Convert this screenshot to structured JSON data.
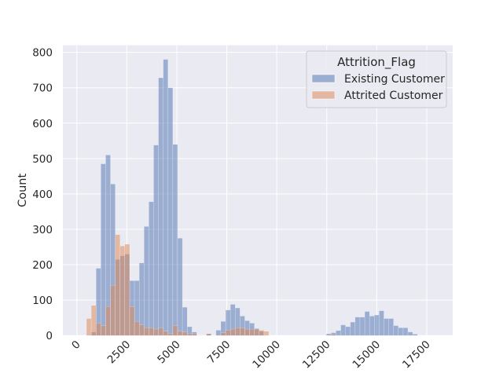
{
  "chart_data": {
    "type": "bar",
    "subtype": "histogram",
    "xlabel": "",
    "ylabel": "Count",
    "xlim": [
      -700,
      18800
    ],
    "ylim": [
      0,
      820
    ],
    "bin_width": 240,
    "x_ticks": [
      0,
      2500,
      5000,
      7500,
      10000,
      12500,
      15000,
      17500
    ],
    "x_tick_labels": [
      "0",
      "2500",
      "5000",
      "7500",
      "10000",
      "12500",
      "15000",
      "17500"
    ],
    "y_ticks": [
      0,
      100,
      200,
      300,
      400,
      500,
      600,
      700,
      800
    ],
    "y_tick_labels": [
      "0",
      "100",
      "200",
      "300",
      "400",
      "500",
      "600",
      "700",
      "800"
    ],
    "grid": true,
    "background": "#eaeaf2",
    "legend": {
      "title": "Attrition_Flag",
      "position": "top-right",
      "entries": [
        "Existing Customer",
        "Attrited Customer"
      ]
    },
    "series": [
      {
        "name": "Existing Customer",
        "color": "#4c72b0",
        "bins": [
          {
            "x": 720,
            "value": 10
          },
          {
            "x": 960,
            "value": 190
          },
          {
            "x": 1200,
            "value": 485
          },
          {
            "x": 1440,
            "value": 510
          },
          {
            "x": 1680,
            "value": 428
          },
          {
            "x": 1920,
            "value": 215
          },
          {
            "x": 2160,
            "value": 225
          },
          {
            "x": 2400,
            "value": 230
          },
          {
            "x": 2640,
            "value": 155
          },
          {
            "x": 2880,
            "value": 155
          },
          {
            "x": 3120,
            "value": 205
          },
          {
            "x": 3360,
            "value": 308
          },
          {
            "x": 3600,
            "value": 378
          },
          {
            "x": 3840,
            "value": 538
          },
          {
            "x": 4080,
            "value": 728
          },
          {
            "x": 4320,
            "value": 780
          },
          {
            "x": 4560,
            "value": 700
          },
          {
            "x": 4800,
            "value": 540
          },
          {
            "x": 5040,
            "value": 275
          },
          {
            "x": 5280,
            "value": 80
          },
          {
            "x": 5520,
            "value": 25
          },
          {
            "x": 5760,
            "value": 10
          },
          {
            "x": 6480,
            "value": 5
          },
          {
            "x": 6960,
            "value": 15
          },
          {
            "x": 7200,
            "value": 40
          },
          {
            "x": 7440,
            "value": 72
          },
          {
            "x": 7680,
            "value": 88
          },
          {
            "x": 7920,
            "value": 78
          },
          {
            "x": 8160,
            "value": 55
          },
          {
            "x": 8400,
            "value": 42
          },
          {
            "x": 8640,
            "value": 35
          },
          {
            "x": 8880,
            "value": 20
          },
          {
            "x": 9120,
            "value": 12
          },
          {
            "x": 12480,
            "value": 5
          },
          {
            "x": 12720,
            "value": 8
          },
          {
            "x": 12960,
            "value": 14
          },
          {
            "x": 13200,
            "value": 30
          },
          {
            "x": 13440,
            "value": 25
          },
          {
            "x": 13680,
            "value": 38
          },
          {
            "x": 13920,
            "value": 52
          },
          {
            "x": 14160,
            "value": 52
          },
          {
            "x": 14400,
            "value": 68
          },
          {
            "x": 14640,
            "value": 55
          },
          {
            "x": 14880,
            "value": 58
          },
          {
            "x": 15120,
            "value": 70
          },
          {
            "x": 15360,
            "value": 48
          },
          {
            "x": 15600,
            "value": 48
          },
          {
            "x": 15840,
            "value": 28
          },
          {
            "x": 16080,
            "value": 22
          },
          {
            "x": 16320,
            "value": 22
          },
          {
            "x": 16560,
            "value": 10
          },
          {
            "x": 16800,
            "value": 4
          }
        ]
      },
      {
        "name": "Attrited Customer",
        "color": "#dd8452",
        "bins": [
          {
            "x": 480,
            "value": 48
          },
          {
            "x": 720,
            "value": 85
          },
          {
            "x": 960,
            "value": 35
          },
          {
            "x": 1200,
            "value": 28
          },
          {
            "x": 1440,
            "value": 82
          },
          {
            "x": 1680,
            "value": 142
          },
          {
            "x": 1920,
            "value": 285
          },
          {
            "x": 2160,
            "value": 253
          },
          {
            "x": 2400,
            "value": 258
          },
          {
            "x": 2640,
            "value": 82
          },
          {
            "x": 2880,
            "value": 40
          },
          {
            "x": 3120,
            "value": 30
          },
          {
            "x": 3360,
            "value": 22
          },
          {
            "x": 3600,
            "value": 22
          },
          {
            "x": 3840,
            "value": 18
          },
          {
            "x": 4080,
            "value": 22
          },
          {
            "x": 4320,
            "value": 12
          },
          {
            "x": 4560,
            "value": 5
          },
          {
            "x": 4800,
            "value": 28
          },
          {
            "x": 5040,
            "value": 12
          },
          {
            "x": 5280,
            "value": 10
          },
          {
            "x": 5520,
            "value": 5
          },
          {
            "x": 5760,
            "value": 5
          },
          {
            "x": 6480,
            "value": 5
          },
          {
            "x": 7200,
            "value": 8
          },
          {
            "x": 7440,
            "value": 15
          },
          {
            "x": 7680,
            "value": 18
          },
          {
            "x": 7920,
            "value": 22
          },
          {
            "x": 8160,
            "value": 22
          },
          {
            "x": 8400,
            "value": 18
          },
          {
            "x": 8640,
            "value": 18
          },
          {
            "x": 8880,
            "value": 18
          },
          {
            "x": 9120,
            "value": 15
          },
          {
            "x": 9360,
            "value": 12
          },
          {
            "x": 12720,
            "value": 4
          }
        ]
      }
    ]
  }
}
